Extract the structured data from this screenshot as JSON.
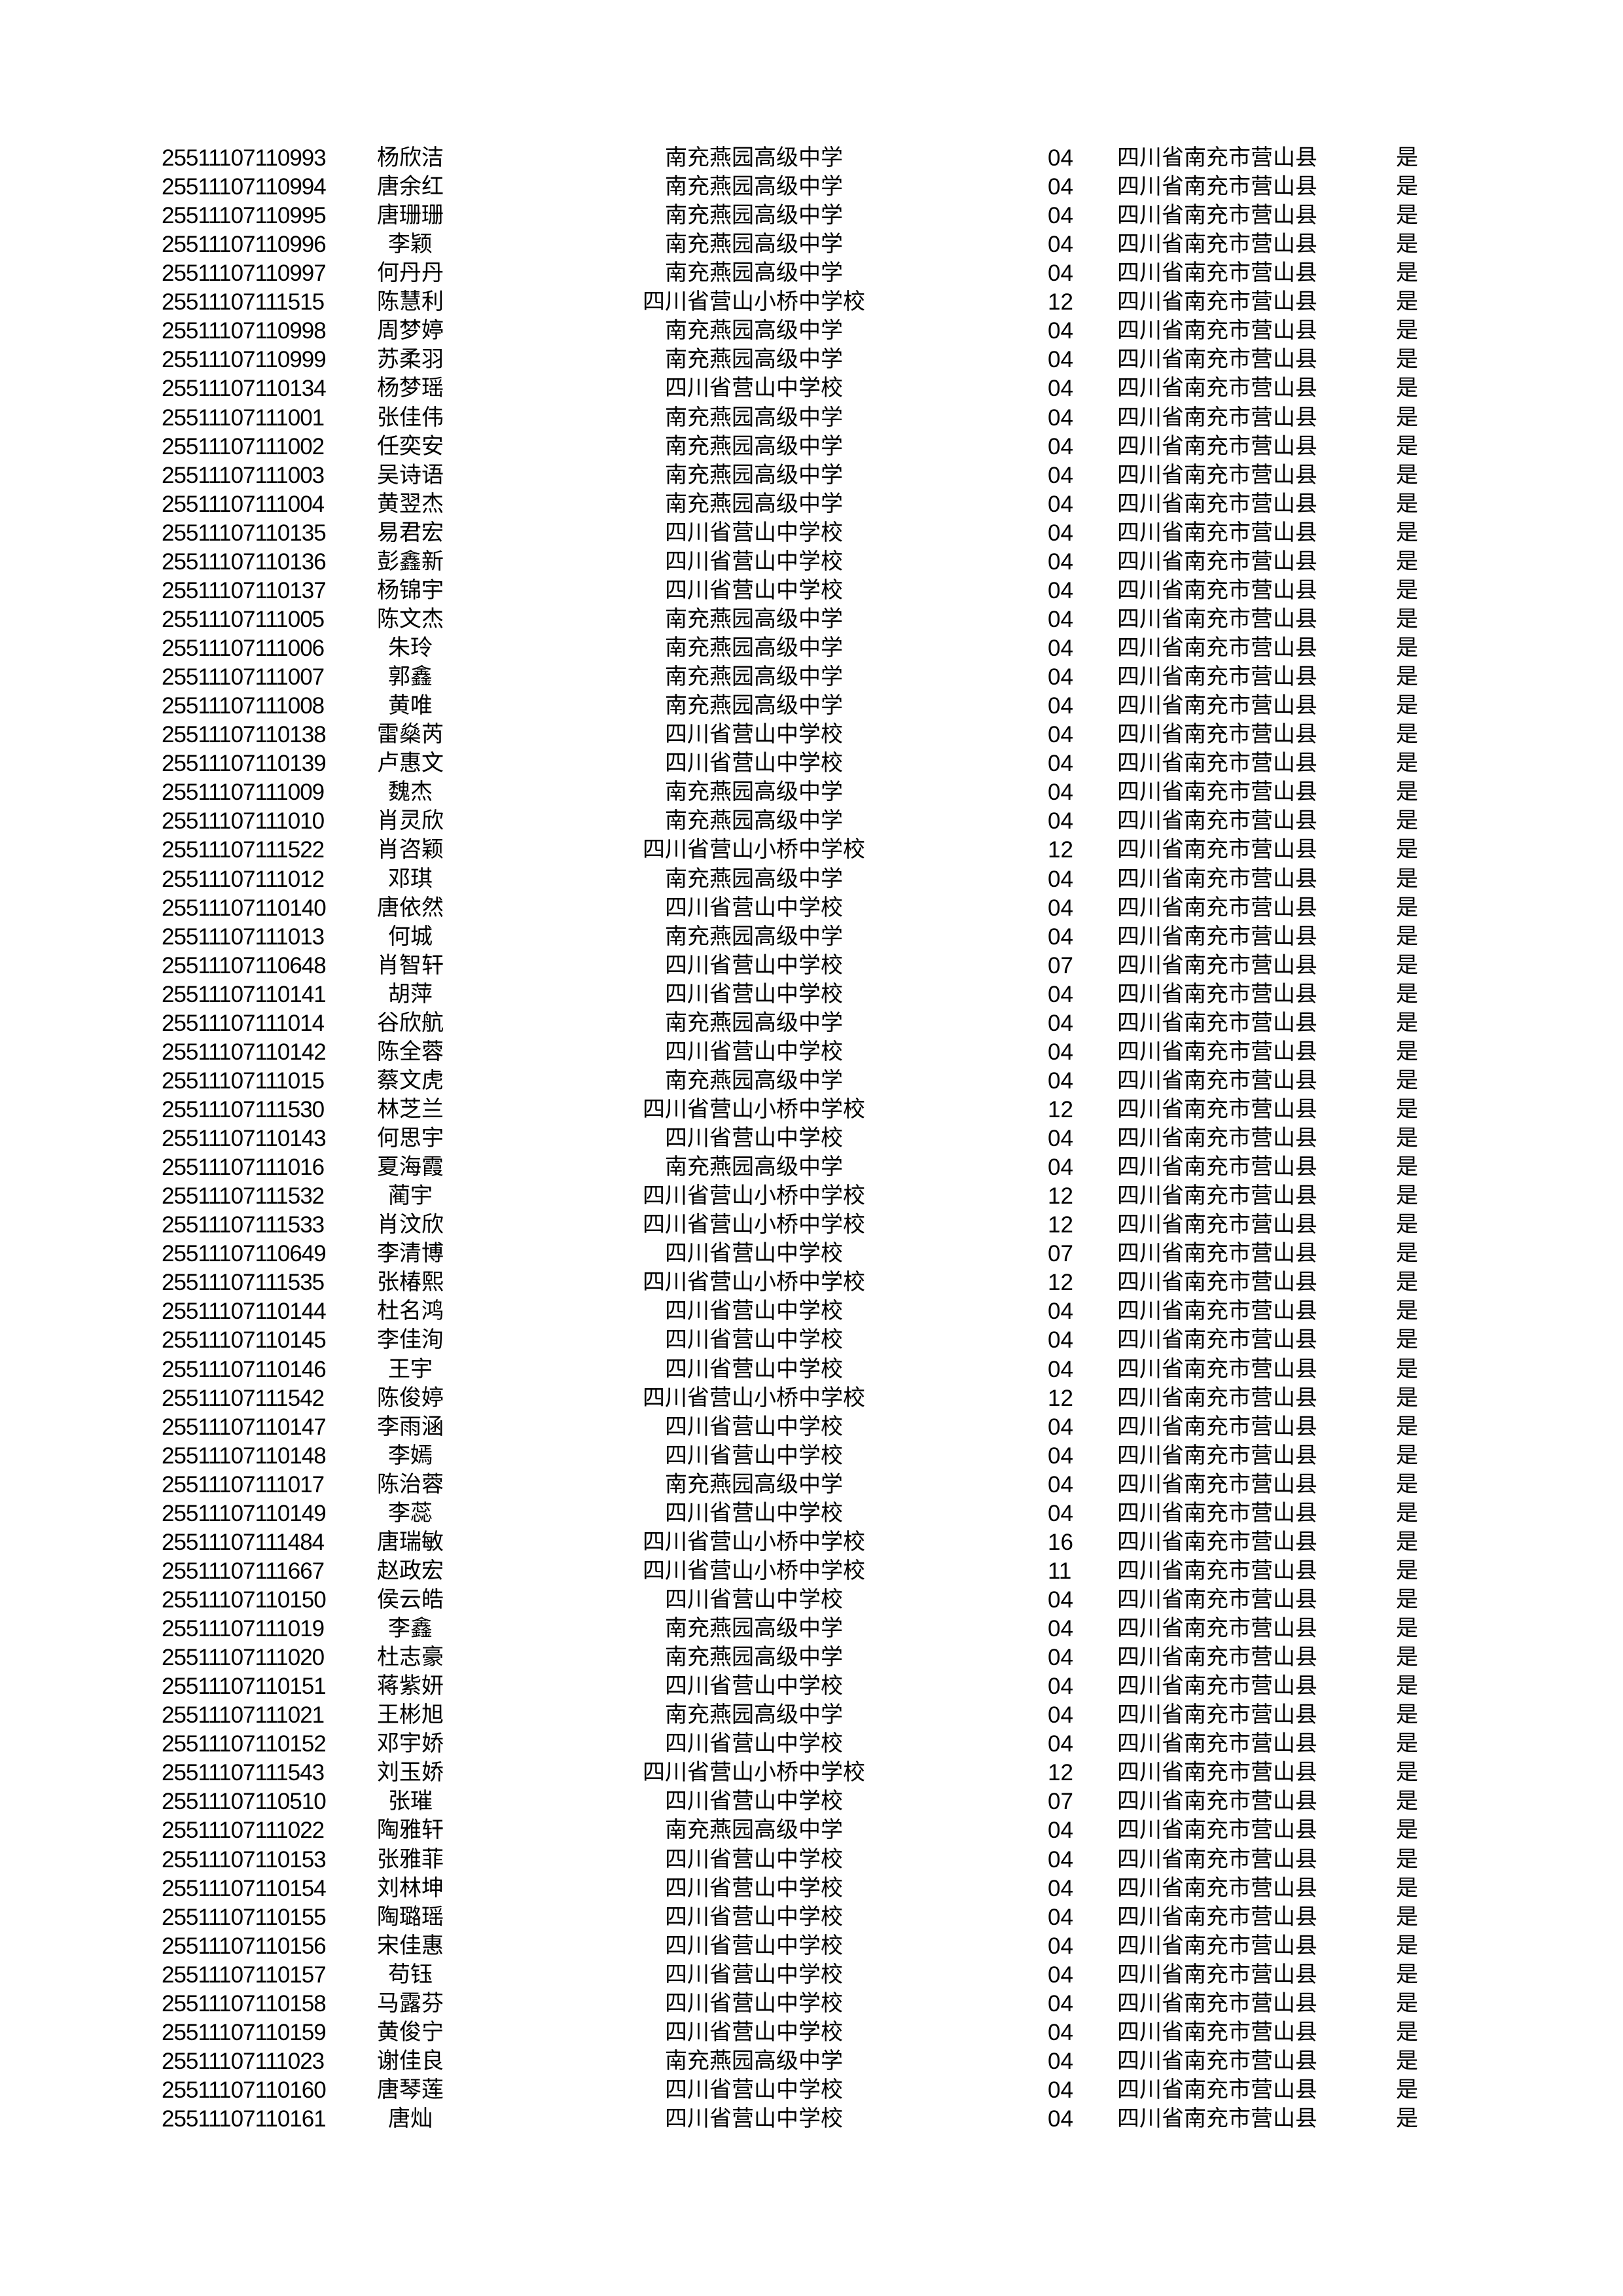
{
  "page": {
    "background": "#ffffff",
    "text_color": "#000000"
  },
  "table": {
    "column_keys": [
      "exam_id",
      "name",
      "school",
      "code",
      "district",
      "flag"
    ],
    "rows": [
      [
        "25511107110993",
        "杨欣洁",
        "南充燕园高级中学",
        "04",
        "四川省南充市营山县",
        "是"
      ],
      [
        "25511107110994",
        "唐余红",
        "南充燕园高级中学",
        "04",
        "四川省南充市营山县",
        "是"
      ],
      [
        "25511107110995",
        "唐珊珊",
        "南充燕园高级中学",
        "04",
        "四川省南充市营山县",
        "是"
      ],
      [
        "25511107110996",
        "李颖",
        "南充燕园高级中学",
        "04",
        "四川省南充市营山县",
        "是"
      ],
      [
        "25511107110997",
        "何丹丹",
        "南充燕园高级中学",
        "04",
        "四川省南充市营山县",
        "是"
      ],
      [
        "25511107111515",
        "陈慧利",
        "四川省营山小桥中学校",
        "12",
        "四川省南充市营山县",
        "是"
      ],
      [
        "25511107110998",
        "周梦婷",
        "南充燕园高级中学",
        "04",
        "四川省南充市营山县",
        "是"
      ],
      [
        "25511107110999",
        "苏柔羽",
        "南充燕园高级中学",
        "04",
        "四川省南充市营山县",
        "是"
      ],
      [
        "25511107110134",
        "杨梦瑶",
        "四川省营山中学校",
        "04",
        "四川省南充市营山县",
        "是"
      ],
      [
        "25511107111001",
        "张佳伟",
        "南充燕园高级中学",
        "04",
        "四川省南充市营山县",
        "是"
      ],
      [
        "25511107111002",
        "任奕安",
        "南充燕园高级中学",
        "04",
        "四川省南充市营山县",
        "是"
      ],
      [
        "25511107111003",
        "吴诗语",
        "南充燕园高级中学",
        "04",
        "四川省南充市营山县",
        "是"
      ],
      [
        "25511107111004",
        "黄翌杰",
        "南充燕园高级中学",
        "04",
        "四川省南充市营山县",
        "是"
      ],
      [
        "25511107110135",
        "易君宏",
        "四川省营山中学校",
        "04",
        "四川省南充市营山县",
        "是"
      ],
      [
        "25511107110136",
        "彭鑫新",
        "四川省营山中学校",
        "04",
        "四川省南充市营山县",
        "是"
      ],
      [
        "25511107110137",
        "杨锦宇",
        "四川省营山中学校",
        "04",
        "四川省南充市营山县",
        "是"
      ],
      [
        "25511107111005",
        "陈文杰",
        "南充燕园高级中学",
        "04",
        "四川省南充市营山县",
        "是"
      ],
      [
        "25511107111006",
        "朱玲",
        "南充燕园高级中学",
        "04",
        "四川省南充市营山县",
        "是"
      ],
      [
        "25511107111007",
        "郭鑫",
        "南充燕园高级中学",
        "04",
        "四川省南充市营山县",
        "是"
      ],
      [
        "25511107111008",
        "黄唯",
        "南充燕园高级中学",
        "04",
        "四川省南充市营山县",
        "是"
      ],
      [
        "25511107110138",
        "雷燊芮",
        "四川省营山中学校",
        "04",
        "四川省南充市营山县",
        "是"
      ],
      [
        "25511107110139",
        "卢惠文",
        "四川省营山中学校",
        "04",
        "四川省南充市营山县",
        "是"
      ],
      [
        "25511107111009",
        "魏杰",
        "南充燕园高级中学",
        "04",
        "四川省南充市营山县",
        "是"
      ],
      [
        "25511107111010",
        "肖灵欣",
        "南充燕园高级中学",
        "04",
        "四川省南充市营山县",
        "是"
      ],
      [
        "25511107111522",
        "肖咨颖",
        "四川省营山小桥中学校",
        "12",
        "四川省南充市营山县",
        "是"
      ],
      [
        "25511107111012",
        "邓琪",
        "南充燕园高级中学",
        "04",
        "四川省南充市营山县",
        "是"
      ],
      [
        "25511107110140",
        "唐依然",
        "四川省营山中学校",
        "04",
        "四川省南充市营山县",
        "是"
      ],
      [
        "25511107111013",
        "何城",
        "南充燕园高级中学",
        "04",
        "四川省南充市营山县",
        "是"
      ],
      [
        "25511107110648",
        "肖智轩",
        "四川省营山中学校",
        "07",
        "四川省南充市营山县",
        "是"
      ],
      [
        "25511107110141",
        "胡萍",
        "四川省营山中学校",
        "04",
        "四川省南充市营山县",
        "是"
      ],
      [
        "25511107111014",
        "谷欣航",
        "南充燕园高级中学",
        "04",
        "四川省南充市营山县",
        "是"
      ],
      [
        "25511107110142",
        "陈全蓉",
        "四川省营山中学校",
        "04",
        "四川省南充市营山县",
        "是"
      ],
      [
        "25511107111015",
        "蔡文虎",
        "南充燕园高级中学",
        "04",
        "四川省南充市营山县",
        "是"
      ],
      [
        "25511107111530",
        "林芝兰",
        "四川省营山小桥中学校",
        "12",
        "四川省南充市营山县",
        "是"
      ],
      [
        "25511107110143",
        "何思宇",
        "四川省营山中学校",
        "04",
        "四川省南充市营山县",
        "是"
      ],
      [
        "25511107111016",
        "夏海霞",
        "南充燕园高级中学",
        "04",
        "四川省南充市营山县",
        "是"
      ],
      [
        "25511107111532",
        "蔺宇",
        "四川省营山小桥中学校",
        "12",
        "四川省南充市营山县",
        "是"
      ],
      [
        "25511107111533",
        "肖汶欣",
        "四川省营山小桥中学校",
        "12",
        "四川省南充市营山县",
        "是"
      ],
      [
        "25511107110649",
        "李清博",
        "四川省营山中学校",
        "07",
        "四川省南充市营山县",
        "是"
      ],
      [
        "25511107111535",
        "张椿熙",
        "四川省营山小桥中学校",
        "12",
        "四川省南充市营山县",
        "是"
      ],
      [
        "25511107110144",
        "杜名鸿",
        "四川省营山中学校",
        "04",
        "四川省南充市营山县",
        "是"
      ],
      [
        "25511107110145",
        "李佳洵",
        "四川省营山中学校",
        "04",
        "四川省南充市营山县",
        "是"
      ],
      [
        "25511107110146",
        "王宇",
        "四川省营山中学校",
        "04",
        "四川省南充市营山县",
        "是"
      ],
      [
        "25511107111542",
        "陈俊婷",
        "四川省营山小桥中学校",
        "12",
        "四川省南充市营山县",
        "是"
      ],
      [
        "25511107110147",
        "李雨涵",
        "四川省营山中学校",
        "04",
        "四川省南充市营山县",
        "是"
      ],
      [
        "25511107110148",
        "李嫣",
        "四川省营山中学校",
        "04",
        "四川省南充市营山县",
        "是"
      ],
      [
        "25511107111017",
        "陈治蓉",
        "南充燕园高级中学",
        "04",
        "四川省南充市营山县",
        "是"
      ],
      [
        "25511107110149",
        "李蕊",
        "四川省营山中学校",
        "04",
        "四川省南充市营山县",
        "是"
      ],
      [
        "25511107111484",
        "唐瑞敏",
        "四川省营山小桥中学校",
        "16",
        "四川省南充市营山县",
        "是"
      ],
      [
        "25511107111667",
        "赵政宏",
        "四川省营山小桥中学校",
        "11",
        "四川省南充市营山县",
        "是"
      ],
      [
        "25511107110150",
        "侯云皓",
        "四川省营山中学校",
        "04",
        "四川省南充市营山县",
        "是"
      ],
      [
        "25511107111019",
        "李鑫",
        "南充燕园高级中学",
        "04",
        "四川省南充市营山县",
        "是"
      ],
      [
        "25511107111020",
        "杜志豪",
        "南充燕园高级中学",
        "04",
        "四川省南充市营山县",
        "是"
      ],
      [
        "25511107110151",
        "蒋紫妍",
        "四川省营山中学校",
        "04",
        "四川省南充市营山县",
        "是"
      ],
      [
        "25511107111021",
        "王彬旭",
        "南充燕园高级中学",
        "04",
        "四川省南充市营山县",
        "是"
      ],
      [
        "25511107110152",
        "邓宇娇",
        "四川省营山中学校",
        "04",
        "四川省南充市营山县",
        "是"
      ],
      [
        "25511107111543",
        "刘玉娇",
        "四川省营山小桥中学校",
        "12",
        "四川省南充市营山县",
        "是"
      ],
      [
        "25511107110510",
        "张璀",
        "四川省营山中学校",
        "07",
        "四川省南充市营山县",
        "是"
      ],
      [
        "25511107111022",
        "陶雅轩",
        "南充燕园高级中学",
        "04",
        "四川省南充市营山县",
        "是"
      ],
      [
        "25511107110153",
        "张雅菲",
        "四川省营山中学校",
        "04",
        "四川省南充市营山县",
        "是"
      ],
      [
        "25511107110154",
        "刘林坤",
        "四川省营山中学校",
        "04",
        "四川省南充市营山县",
        "是"
      ],
      [
        "25511107110155",
        "陶璐瑶",
        "四川省营山中学校",
        "04",
        "四川省南充市营山县",
        "是"
      ],
      [
        "25511107110156",
        "宋佳惠",
        "四川省营山中学校",
        "04",
        "四川省南充市营山县",
        "是"
      ],
      [
        "25511107110157",
        "苟钰",
        "四川省营山中学校",
        "04",
        "四川省南充市营山县",
        "是"
      ],
      [
        "25511107110158",
        "马露芬",
        "四川省营山中学校",
        "04",
        "四川省南充市营山县",
        "是"
      ],
      [
        "25511107110159",
        "黄俊宁",
        "四川省营山中学校",
        "04",
        "四川省南充市营山县",
        "是"
      ],
      [
        "25511107111023",
        "谢佳良",
        "南充燕园高级中学",
        "04",
        "四川省南充市营山县",
        "是"
      ],
      [
        "25511107110160",
        "唐琴莲",
        "四川省营山中学校",
        "04",
        "四川省南充市营山县",
        "是"
      ],
      [
        "25511107110161",
        "唐灿",
        "四川省营山中学校",
        "04",
        "四川省南充市营山县",
        "是"
      ]
    ]
  }
}
